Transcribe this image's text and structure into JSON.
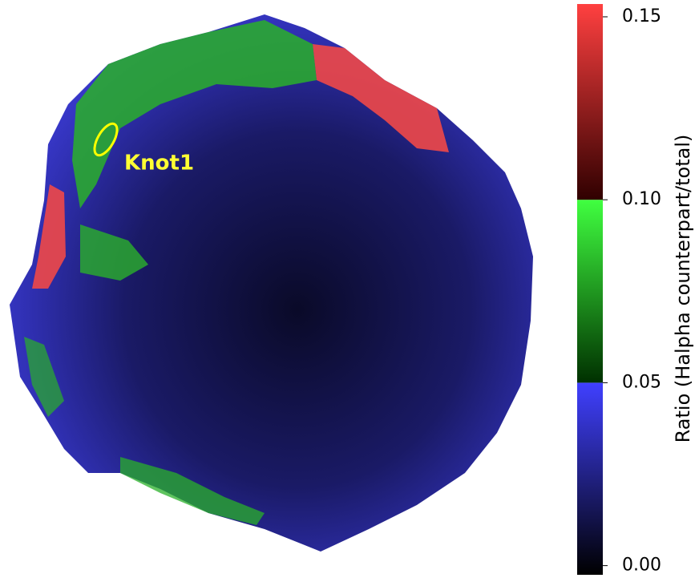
{
  "chart_data": {
    "type": "image-map",
    "annotation": "Knot1",
    "colorbar": {
      "label": "Ratio (Halpha counterpart/total)",
      "ylim": [
        -0.0025,
        0.1535
      ],
      "yticks": [
        {
          "value": 0,
          "label": "0.00"
        },
        {
          "value": 0.05,
          "label": "0.05"
        },
        {
          "value": 0.1,
          "label": "0.10"
        },
        {
          "value": 0.15,
          "label": "0.15"
        }
      ],
      "segments": [
        {
          "range": [
            -0.0025,
            0.05
          ],
          "colors": [
            "#000000",
            "#4040ff"
          ]
        },
        {
          "range": [
            0.05,
            0.1
          ],
          "colors": [
            "#003000",
            "#40ff40"
          ]
        },
        {
          "range": [
            0.1,
            0.1535
          ],
          "colors": [
            "#300000",
            "#ff4040"
          ]
        }
      ]
    }
  }
}
